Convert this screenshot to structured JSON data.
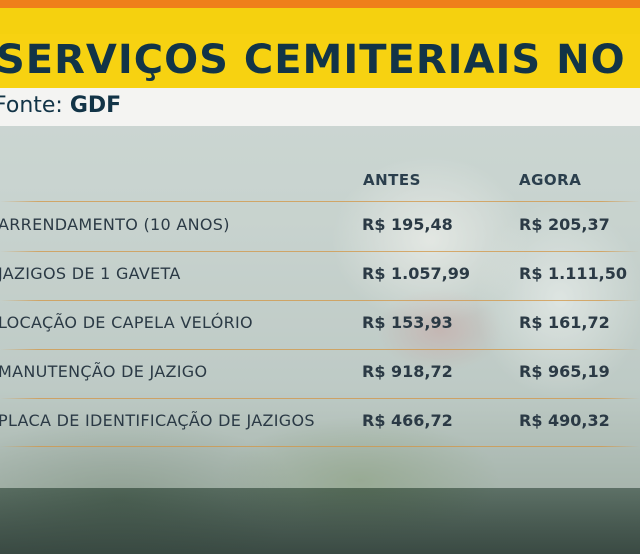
{
  "header": {
    "title": "SERVIÇOS CEMITERIAIS NO DF",
    "source_prefix": "Fonte: ",
    "source_name": "GDF"
  },
  "table": {
    "columns": [
      "ANTES",
      "AGORA"
    ],
    "rows": [
      {
        "label": "ARRENDAMENTO (10 ANOS)",
        "antes": "R$ 195,48",
        "agora": "R$ 205,37"
      },
      {
        "label": "JAZIGOS DE 1  GAVETA",
        "antes": "R$ 1.057,99",
        "agora": "R$ 1.111,50"
      },
      {
        "label": "LOCAÇÃO DE CAPELA VELÓRIO",
        "antes": "R$ 153,93",
        "agora": "R$ 161,72"
      },
      {
        "label": "MANUTENÇÃO DE JAZIGO",
        "antes": "R$ 918,72",
        "agora": "R$ 965,19"
      },
      {
        "label": "PLACA DE IDENTIFICAÇÃO DE JAZIGOS",
        "antes": "R$ 466,72",
        "agora": "R$ 490,32"
      }
    ]
  },
  "colors": {
    "accent_orange": "#ef7f1a",
    "title_yellow": "#f7d211",
    "text_navy": "#123447"
  }
}
